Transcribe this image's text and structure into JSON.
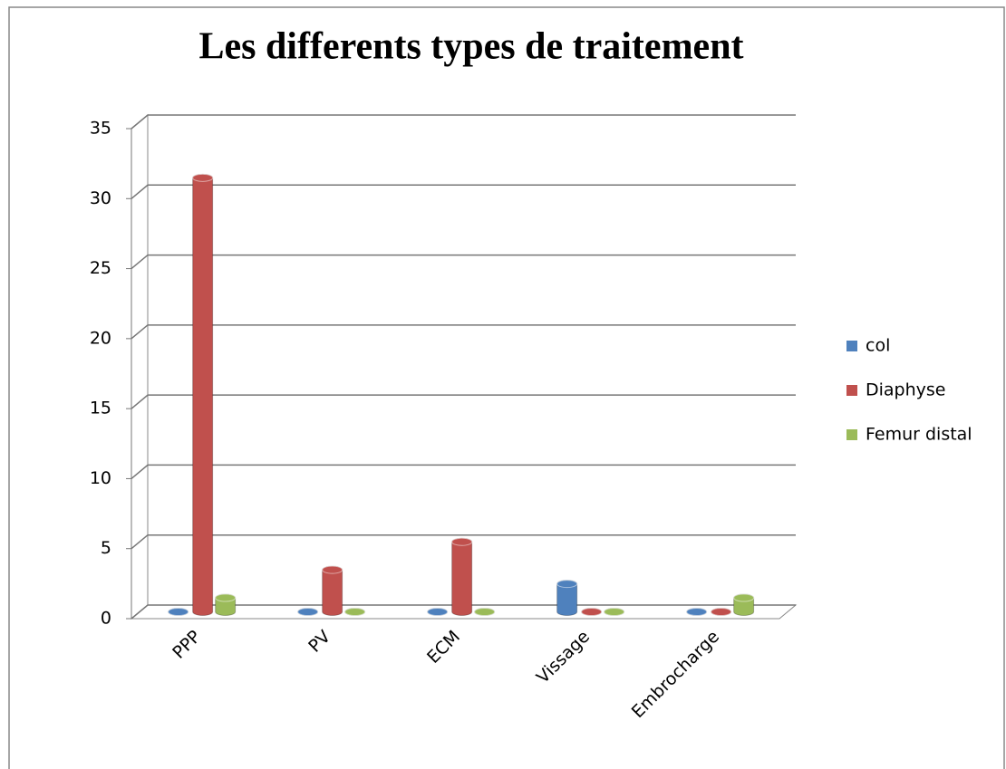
{
  "chart_data": {
    "type": "bar3d",
    "title": "Les differents types de traitement",
    "categories": [
      "PPP",
      "PV",
      "ECM",
      "Vissage",
      "Embrocharge"
    ],
    "series": [
      {
        "name": "col",
        "color": "#4f81bd",
        "values": [
          0,
          0,
          0,
          2,
          0
        ]
      },
      {
        "name": "Diaphyse",
        "color": "#c0504d",
        "values": [
          31,
          3,
          5,
          0,
          0
        ]
      },
      {
        "name": "Femur distal",
        "color": "#9bbb59",
        "values": [
          1,
          0,
          0,
          0,
          1
        ]
      }
    ],
    "ylim": [
      0,
      35
    ],
    "yticks": [
      0,
      5,
      10,
      15,
      20,
      25,
      30,
      35
    ],
    "grid": true,
    "legend": "right"
  }
}
